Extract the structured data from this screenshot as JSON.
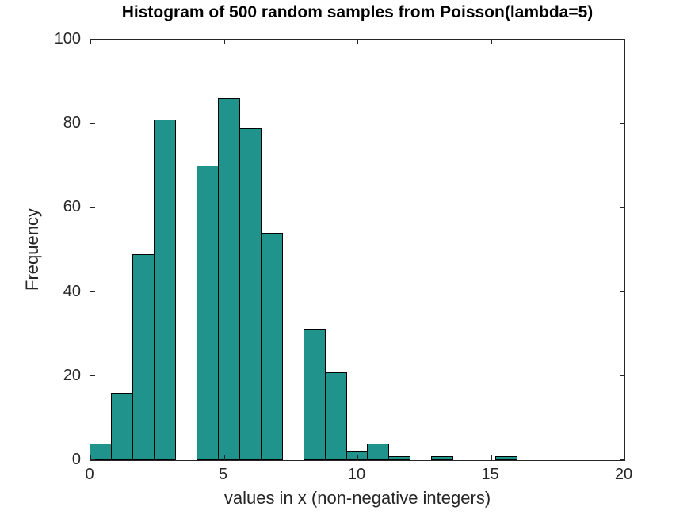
{
  "chart_data": {
    "type": "bar",
    "kind": "histogram",
    "title": "Histogram of 500 random samples from Poisson(lambda=5)",
    "xlabel": "values in x (non-negative integers)",
    "ylabel": "Frequency",
    "xlim": [
      0,
      20
    ],
    "ylim": [
      0,
      100
    ],
    "xticks": [
      "0",
      "5",
      "10",
      "15",
      "20"
    ],
    "xtick_values": [
      0,
      5,
      10,
      15,
      20
    ],
    "yticks": [
      "0",
      "20",
      "40",
      "60",
      "80",
      "100"
    ],
    "ytick_values": [
      0,
      20,
      40,
      60,
      80,
      100
    ],
    "grid": false,
    "legend": null,
    "total_samples": 500,
    "bin_width": 0.8,
    "bin_edges": [
      0,
      0.8,
      1.6,
      2.4,
      3.2,
      4.0,
      4.8,
      5.6,
      6.4,
      7.2,
      8.0,
      8.8,
      9.6,
      10.4,
      11.2,
      12.0,
      12.8,
      13.6,
      14.4,
      15.2,
      16.0
    ],
    "frequencies": [
      4,
      16,
      49,
      81,
      0,
      70,
      86,
      79,
      54,
      0,
      31,
      21,
      2,
      4,
      1,
      0,
      1,
      0,
      0,
      1
    ],
    "colors": {
      "bar_face": "#20948c",
      "bar_edge": "#000000",
      "axis": "#262626",
      "tick_text": "#262626",
      "label_text": "#262626",
      "title_text": "#000000",
      "background": "#ffffff"
    }
  }
}
